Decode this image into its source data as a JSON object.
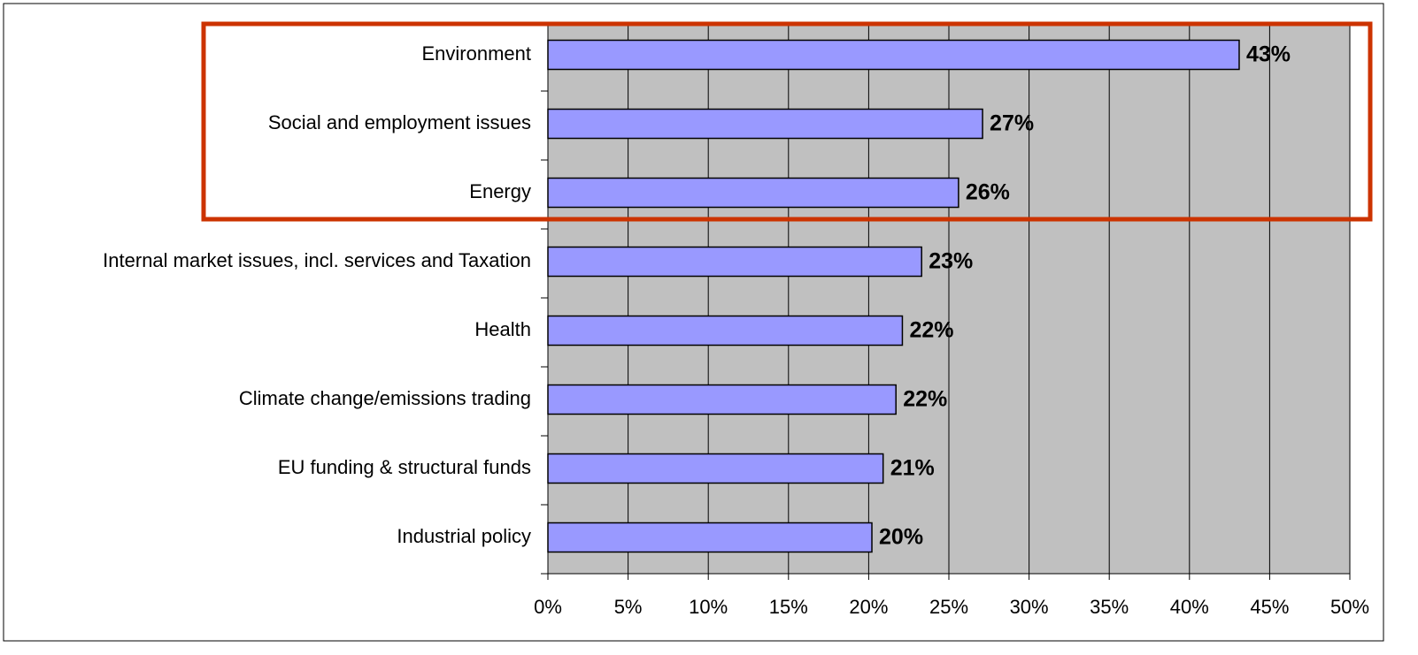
{
  "chart_data": {
    "type": "bar",
    "orientation": "horizontal",
    "categories": [
      "Environment",
      "Social and employment issues",
      "Energy",
      "Internal market issues, incl. services and Taxation",
      "Health",
      "Climate change/emissions trading",
      "EU funding & structural funds",
      "Industrial policy"
    ],
    "values": [
      43.1,
      27.1,
      25.6,
      23.3,
      22.1,
      21.7,
      20.9,
      20.2
    ],
    "value_labels": [
      "43%",
      "27%",
      "26%",
      "23%",
      "22%",
      "22%",
      "21%",
      "20%"
    ],
    "color": "#9999ff",
    "xlim": [
      0,
      50
    ],
    "xticks": [
      {
        "value": 0,
        "label": "0%"
      },
      {
        "value": 5,
        "label": "5%"
      },
      {
        "value": 10,
        "label": "10%"
      },
      {
        "value": 15,
        "label": "15%"
      },
      {
        "value": 20,
        "label": "20%"
      },
      {
        "value": 25,
        "label": "25%"
      },
      {
        "value": 30,
        "label": "30%"
      },
      {
        "value": 35,
        "label": "35%"
      },
      {
        "value": 40,
        "label": "40%"
      },
      {
        "value": 45,
        "label": "45%"
      },
      {
        "value": 50,
        "label": "50%"
      }
    ],
    "grid": true
  }
}
